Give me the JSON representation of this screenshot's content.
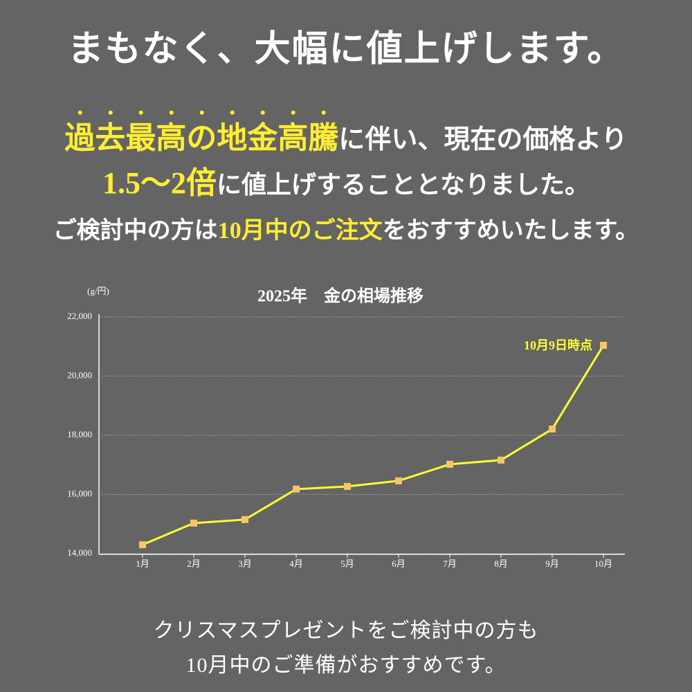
{
  "header": {
    "title": "まもなく、大幅に値上げします。",
    "lines": [
      [
        {
          "text": "過去最高の地金高騰",
          "highlight": true,
          "emphasis": true
        },
        {
          "text": "に伴い、現在の価格より",
          "highlight": false,
          "emphasis": false
        }
      ],
      [
        {
          "text": "1.5〜2倍",
          "highlight": true,
          "emphasis": false
        },
        {
          "text": "に値上げすることとなりました。",
          "highlight": false,
          "emphasis": false
        }
      ],
      [
        {
          "text": "ご検討中の方は",
          "highlight": false,
          "emphasis": false
        },
        {
          "text": "10月中のご注文",
          "highlight": true,
          "emphasis": false
        },
        {
          "text": "をおすすめいたします。",
          "highlight": false,
          "emphasis": false
        }
      ]
    ]
  },
  "chart_data": {
    "type": "line",
    "title": "2025年　金の相場推移",
    "y_label": "(g/円)",
    "categories": [
      "1月",
      "2月",
      "3月",
      "4月",
      "5月",
      "6月",
      "7月",
      "8月",
      "9月",
      "10月"
    ],
    "values": [
      14300,
      15030,
      15150,
      16180,
      16270,
      16460,
      17020,
      17160,
      18210,
      21040
    ],
    "color": "#ffff33",
    "marker_color": "#f7c46a",
    "ylim": [
      14000,
      22000
    ],
    "yticks": [
      {
        "value": 14000,
        "label": "14,000"
      },
      {
        "value": 16000,
        "label": "16,000"
      },
      {
        "value": 18000,
        "label": "18,000"
      },
      {
        "value": 20000,
        "label": "20,000"
      },
      {
        "value": 22000,
        "label": "22,000"
      }
    ],
    "grid": true,
    "annotation": {
      "text": "10月9日時点",
      "index": 9
    }
  },
  "footer": {
    "lines": [
      "クリスマスプレゼントをご検討中の方も",
      "10月中のご準備がおすすめです。"
    ]
  }
}
